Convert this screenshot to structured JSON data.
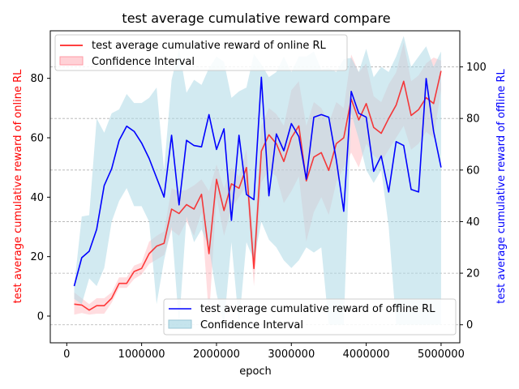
{
  "chart_data": {
    "type": "line",
    "title": "test average cumulative reward  compare",
    "xlabel": "epoch",
    "ylabel_left": "test average cumulative reward of online RL",
    "ylabel_right": "test average cumulative reward of offline RL",
    "xlim": [
      -220000,
      5250000
    ],
    "ylim_left": [
      -9,
      96
    ],
    "ylim_right": [
      -7,
      114
    ],
    "x_ticks": [
      0,
      1000000,
      2000000,
      3000000,
      4000000,
      5000000
    ],
    "x_tick_labels": [
      "0",
      "1000000",
      "2000000",
      "3000000",
      "4000000",
      "5000000"
    ],
    "y_ticks_left": [
      0,
      20,
      40,
      60,
      80
    ],
    "y_tick_labels_left": [
      "0",
      "20",
      "40",
      "60",
      "80"
    ],
    "y_ticks_right": [
      0,
      20,
      40,
      60,
      80,
      100
    ],
    "y_tick_labels_right": [
      "0",
      "20",
      "40",
      "60",
      "80",
      "100"
    ],
    "grid": "horizontal dashed at right-axis ticks",
    "colors": {
      "online_line": "#ff0000",
      "online_band": "#ffb3ba",
      "offline_line": "#0000ff",
      "offline_band": "#add8e6",
      "left_label": "#ff0000",
      "right_label": "#0000ff"
    },
    "x": [
      100000,
      200000,
      300000,
      400000,
      500000,
      600000,
      700000,
      800000,
      900000,
      1000000,
      1100000,
      1200000,
      1300000,
      1400000,
      1500000,
      1600000,
      1700000,
      1800000,
      1900000,
      2000000,
      2100000,
      2200000,
      2300000,
      2400000,
      2500000,
      2600000,
      2700000,
      2800000,
      2900000,
      3000000,
      3100000,
      3200000,
      3300000,
      3400000,
      3500000,
      3600000,
      3700000,
      3800000,
      3900000,
      4000000,
      4100000,
      4200000,
      4300000,
      4400000,
      4500000,
      4600000,
      4700000,
      4800000,
      4900000,
      5000000
    ],
    "series": [
      {
        "name": "test average cumulative reward of online RL",
        "axis": "left",
        "values": [
          4,
          3.7,
          2,
          3.5,
          3.5,
          6,
          11,
          11,
          15,
          16,
          21,
          23.5,
          24.5,
          36,
          34.5,
          37.5,
          36,
          41,
          21,
          46,
          35.5,
          44.5,
          43,
          50,
          16,
          55.5,
          61,
          58,
          52,
          60,
          64,
          45.5,
          53.5,
          55,
          49,
          58,
          60,
          73,
          66,
          71.5,
          63.5,
          61.5,
          66.5,
          71,
          79,
          67.5,
          69.5,
          73.5,
          71.5,
          82.5
        ],
        "lower": [
          0.5,
          1,
          0.5,
          0.8,
          0.8,
          4.5,
          9.5,
          9.5,
          12.5,
          14,
          17.5,
          19,
          20.5,
          29,
          27,
          32,
          27,
          35,
          -0.5,
          40,
          27,
          36,
          40,
          44,
          10,
          45,
          49,
          47,
          38,
          42,
          47,
          25,
          35,
          40,
          34,
          45,
          50,
          55,
          50,
          58,
          54,
          52,
          56,
          60,
          64,
          56,
          58,
          62,
          60,
          76
        ],
        "upper": [
          8,
          6,
          4,
          6,
          6,
          8,
          13,
          13,
          17,
          18,
          25,
          27,
          28.5,
          43,
          42,
          42.5,
          44,
          46,
          42,
          51,
          43,
          50,
          47,
          56,
          24,
          64,
          70,
          68,
          64,
          76,
          79,
          64,
          72,
          70,
          65,
          72,
          70,
          88,
          82,
          85,
          74,
          72,
          78,
          82,
          92,
          79,
          81,
          85,
          87,
          86
        ]
      },
      {
        "name": "test average cumulative reward of offline RL",
        "axis": "right",
        "values": [
          15,
          26,
          28.5,
          37,
          54,
          60.5,
          71.5,
          77,
          75,
          70.5,
          64.5,
          57,
          49.5,
          73.5,
          46.5,
          71.5,
          69.5,
          69,
          81.5,
          68,
          76,
          40.5,
          73.5,
          50.5,
          48.5,
          96,
          50,
          74,
          67.5,
          78,
          73,
          56.5,
          80.5,
          81.5,
          80.5,
          64,
          44,
          90.5,
          82,
          80.5,
          59.5,
          65.5,
          51.5,
          71,
          69.5,
          52.5,
          51.5,
          95.5,
          75,
          61
        ],
        "lower": [
          10,
          8,
          18,
          15,
          22,
          40,
          48,
          53,
          46,
          46,
          40,
          8,
          25,
          38,
          0,
          42,
          32,
          37,
          30,
          12,
          0,
          32,
          0,
          32,
          25,
          40,
          33,
          30,
          25,
          22,
          25,
          30,
          28,
          30,
          0,
          0,
          0,
          82,
          72,
          60,
          55,
          60,
          38,
          0,
          0,
          0,
          0,
          0,
          0,
          0
        ],
        "upper": [
          15,
          42,
          42.5,
          80,
          74.5,
          82,
          83.5,
          89.5,
          86,
          86,
          88,
          92,
          60,
          95,
          107,
          90,
          95,
          93,
          99.5,
          104,
          102,
          88,
          90.5,
          92,
          105,
          101,
          96,
          98,
          104,
          98,
          104,
          104,
          106,
          99,
          99.5,
          98,
          103,
          103.5,
          98,
          107,
          96,
          100,
          98,
          104,
          112,
          100,
          104,
          108,
          100,
          106
        ]
      }
    ],
    "legend_top": {
      "position": "upper-left",
      "entries": [
        "test average cumulative reward of online RL",
        "Confidence Interval"
      ]
    },
    "legend_bottom": {
      "position": "lower-right",
      "entries": [
        "test average cumulative reward of offline RL",
        "Confidence Interval"
      ]
    }
  }
}
